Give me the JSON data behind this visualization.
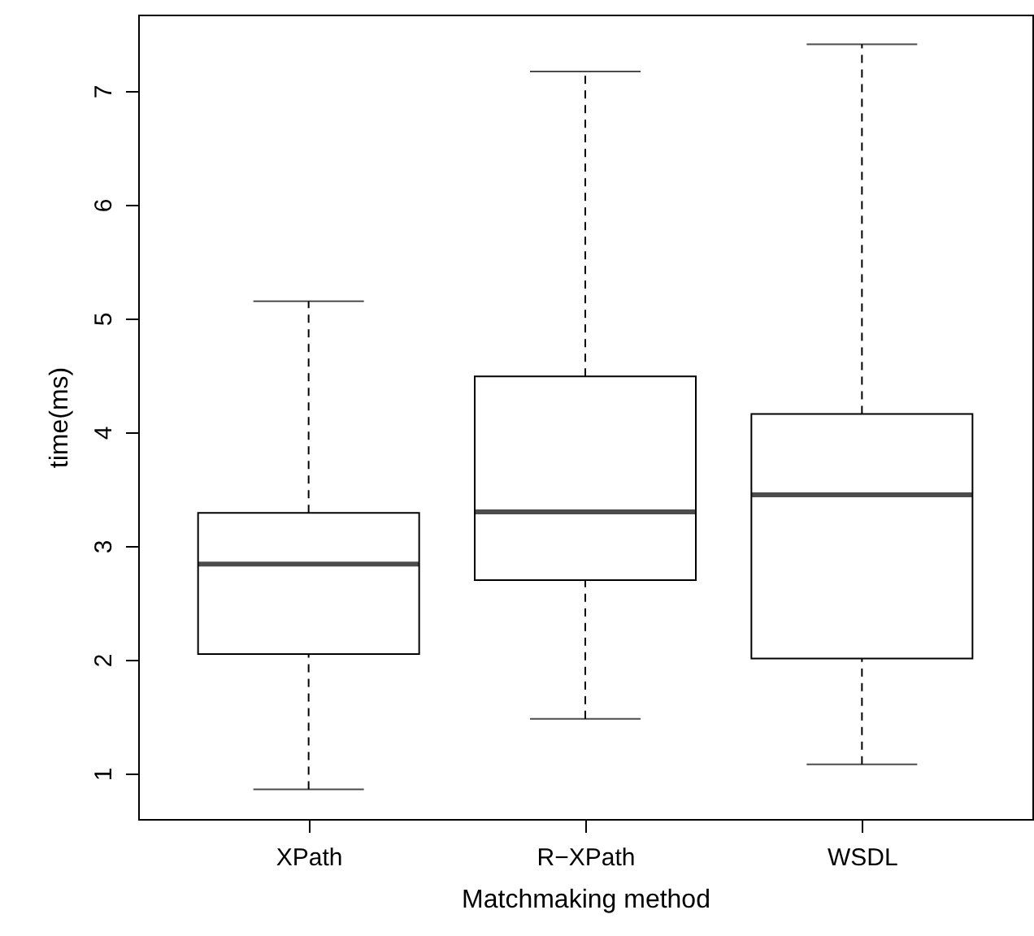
{
  "chart_data": {
    "type": "box",
    "xlabel": "Matchmaking method",
    "ylabel": "time(ms)",
    "categories": [
      "XPath",
      "R−XPath",
      "WSDL"
    ],
    "boxes": [
      {
        "low": 0.86,
        "q1": 2.05,
        "median": 2.84,
        "q3": 3.29,
        "high": 5.15
      },
      {
        "low": 1.48,
        "q1": 2.7,
        "median": 3.3,
        "q3": 4.49,
        "high": 7.17
      },
      {
        "low": 1.08,
        "q1": 2.01,
        "median": 3.45,
        "q3": 4.16,
        "high": 7.41
      }
    ],
    "color": "#ffffff",
    "ylim": [
      0.6,
      7.67
    ],
    "yticks": [
      1,
      2,
      3,
      4,
      5,
      6,
      7
    ],
    "grid": false
  }
}
